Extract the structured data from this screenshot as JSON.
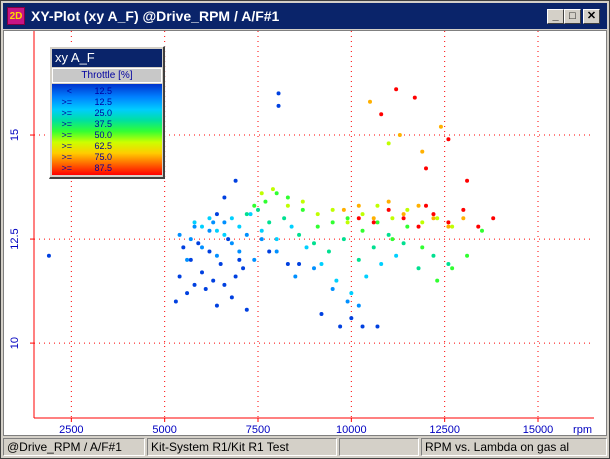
{
  "window": {
    "title": "XY-Plot (xy A_F)   @Drive_RPM / A/F#1",
    "app_icon_text": "2D",
    "minimize_label": "_",
    "maximize_label": "□",
    "close_label": "✕"
  },
  "legend": {
    "title": "xy A_F",
    "header": "Throttle  [%]",
    "rows": [
      {
        "op": "<",
        "value": "12.5",
        "color": "#0040e0"
      },
      {
        "op": ">=",
        "value": "12.5",
        "color": "#0090ff"
      },
      {
        "op": ">=",
        "value": "25.0",
        "color": "#00d0ff"
      },
      {
        "op": ">=",
        "value": "37.5",
        "color": "#00e090"
      },
      {
        "op": ">=",
        "value": "50.0",
        "color": "#30ff30"
      },
      {
        "op": ">=",
        "value": "62.5",
        "color": "#c0ff00"
      },
      {
        "op": ">=",
        "value": "75.0",
        "color": "#ffb000"
      },
      {
        "op": ">=",
        "value": "87.5",
        "color": "#ff0000"
      }
    ]
  },
  "chart_data": {
    "type": "scatter",
    "xlabel": "rpm",
    "ylabel": "",
    "xlim": [
      1500,
      16500
    ],
    "ylim": [
      8.2,
      17.5
    ],
    "x_ticks": [
      2500,
      5000,
      7500,
      10000,
      12500,
      15000
    ],
    "y_ticks": [
      10,
      12.5,
      15
    ],
    "y_tick_labels": [
      "10",
      "12.5",
      "15"
    ],
    "grid": true,
    "legend_position": "top-left",
    "series": [
      {
        "name": "<  12.5",
        "color": "#0040e0",
        "points": [
          [
            1900,
            12.1
          ],
          [
            5300,
            11.0
          ],
          [
            5400,
            11.6
          ],
          [
            5500,
            12.3
          ],
          [
            5600,
            11.2
          ],
          [
            5700,
            12.0
          ],
          [
            5800,
            11.4
          ],
          [
            5900,
            12.4
          ],
          [
            6000,
            11.7
          ],
          [
            6100,
            11.3
          ],
          [
            6200,
            12.2
          ],
          [
            6300,
            11.5
          ],
          [
            6400,
            10.9
          ],
          [
            6500,
            11.9
          ],
          [
            6600,
            11.4
          ],
          [
            6700,
            12.5
          ],
          [
            6800,
            11.1
          ],
          [
            6900,
            11.6
          ],
          [
            7000,
            12.0
          ],
          [
            7100,
            11.8
          ],
          [
            7200,
            10.8
          ],
          [
            6400,
            13.1
          ],
          [
            6600,
            13.5
          ],
          [
            8050,
            16.0
          ],
          [
            8050,
            15.7
          ],
          [
            8600,
            11.9
          ],
          [
            9200,
            10.7
          ],
          [
            9700,
            10.4
          ],
          [
            10000,
            10.6
          ],
          [
            10300,
            10.4
          ],
          [
            10700,
            10.4
          ],
          [
            7800,
            12.2
          ],
          [
            8300,
            11.9
          ],
          [
            6900,
            13.9
          ]
        ]
      },
      {
        "name": ">=  12.5",
        "color": "#0090ff",
        "points": [
          [
            5400,
            12.6
          ],
          [
            5600,
            12.0
          ],
          [
            5800,
            12.8
          ],
          [
            6000,
            12.3
          ],
          [
            6200,
            12.7
          ],
          [
            6400,
            12.1
          ],
          [
            6600,
            12.9
          ],
          [
            6800,
            12.4
          ],
          [
            7000,
            12.2
          ],
          [
            7200,
            12.6
          ],
          [
            7400,
            12.0
          ],
          [
            7600,
            12.5
          ],
          [
            8000,
            12.2
          ],
          [
            8500,
            11.6
          ],
          [
            9000,
            11.8
          ],
          [
            9500,
            11.3
          ],
          [
            9900,
            11.0
          ],
          [
            10200,
            10.9
          ],
          [
            6300,
            12.9
          ],
          [
            5700,
            12.5
          ]
        ]
      },
      {
        "name": ">=  25.0",
        "color": "#00d0ff",
        "points": [
          [
            5800,
            12.9
          ],
          [
            6000,
            12.8
          ],
          [
            6200,
            13.0
          ],
          [
            6400,
            12.7
          ],
          [
            6600,
            12.6
          ],
          [
            6800,
            13.0
          ],
          [
            7000,
            12.8
          ],
          [
            7300,
            13.1
          ],
          [
            7600,
            12.7
          ],
          [
            8000,
            12.5
          ],
          [
            8400,
            12.8
          ],
          [
            8800,
            12.3
          ],
          [
            9200,
            11.9
          ],
          [
            9600,
            11.5
          ],
          [
            10000,
            11.2
          ],
          [
            10400,
            11.6
          ],
          [
            10800,
            11.9
          ],
          [
            11200,
            12.1
          ]
        ]
      },
      {
        "name": ">=  37.5",
        "color": "#00e090",
        "points": [
          [
            7200,
            13.1
          ],
          [
            7500,
            13.2
          ],
          [
            7800,
            12.9
          ],
          [
            8200,
            13.0
          ],
          [
            8600,
            12.6
          ],
          [
            9000,
            12.4
          ],
          [
            9400,
            12.2
          ],
          [
            9800,
            12.5
          ],
          [
            10200,
            12.0
          ],
          [
            10600,
            12.3
          ],
          [
            11000,
            12.6
          ],
          [
            11400,
            12.4
          ],
          [
            11800,
            11.8
          ],
          [
            12200,
            12.1
          ],
          [
            12600,
            11.9
          ]
        ]
      },
      {
        "name": ">=  50.0",
        "color": "#30ff30",
        "points": [
          [
            7400,
            13.3
          ],
          [
            7700,
            13.4
          ],
          [
            8000,
            13.6
          ],
          [
            8300,
            13.5
          ],
          [
            8700,
            13.2
          ],
          [
            9100,
            12.8
          ],
          [
            9500,
            12.9
          ],
          [
            9900,
            13.0
          ],
          [
            10300,
            12.7
          ],
          [
            10700,
            12.9
          ],
          [
            11100,
            12.5
          ],
          [
            11500,
            12.8
          ],
          [
            11900,
            12.3
          ],
          [
            12300,
            11.5
          ],
          [
            12700,
            11.8
          ],
          [
            13100,
            12.1
          ],
          [
            13500,
            12.7
          ]
        ]
      },
      {
        "name": ">=  62.5",
        "color": "#c0ff00",
        "points": [
          [
            7600,
            13.6
          ],
          [
            7900,
            13.7
          ],
          [
            8300,
            13.3
          ],
          [
            8700,
            13.4
          ],
          [
            9100,
            13.1
          ],
          [
            9500,
            13.2
          ],
          [
            9900,
            12.9
          ],
          [
            10300,
            13.1
          ],
          [
            10700,
            13.3
          ],
          [
            11100,
            13.0
          ],
          [
            11500,
            13.2
          ],
          [
            11900,
            12.9
          ],
          [
            12300,
            13.0
          ],
          [
            12700,
            12.8
          ],
          [
            11000,
            14.8
          ]
        ]
      },
      {
        "name": ">=  75.0",
        "color": "#ffb000",
        "points": [
          [
            9800,
            13.2
          ],
          [
            10200,
            13.3
          ],
          [
            10600,
            13.0
          ],
          [
            11000,
            13.4
          ],
          [
            11400,
            13.1
          ],
          [
            11800,
            13.3
          ],
          [
            12200,
            13.0
          ],
          [
            12600,
            12.8
          ],
          [
            13000,
            13.0
          ],
          [
            11300,
            15.0
          ],
          [
            10500,
            15.8
          ],
          [
            11900,
            14.6
          ],
          [
            12400,
            15.2
          ]
        ]
      },
      {
        "name": ">=  87.5",
        "color": "#ff0000",
        "points": [
          [
            10200,
            13.0
          ],
          [
            10600,
            12.9
          ],
          [
            11000,
            13.2
          ],
          [
            11400,
            13.0
          ],
          [
            11800,
            12.8
          ],
          [
            12200,
            13.1
          ],
          [
            12600,
            12.9
          ],
          [
            13000,
            13.2
          ],
          [
            13400,
            12.8
          ],
          [
            13800,
            13.0
          ],
          [
            12000,
            13.3
          ],
          [
            10800,
            15.5
          ],
          [
            11200,
            16.1
          ],
          [
            12000,
            14.2
          ],
          [
            12600,
            14.9
          ],
          [
            13100,
            13.9
          ],
          [
            11700,
            15.9
          ]
        ]
      }
    ]
  },
  "statusbar": {
    "channel": "@Drive_RPM / A/F#1",
    "system": "Kit-System R1/Kit R1 Test",
    "description": "RPM vs. Lambda on gas al"
  }
}
